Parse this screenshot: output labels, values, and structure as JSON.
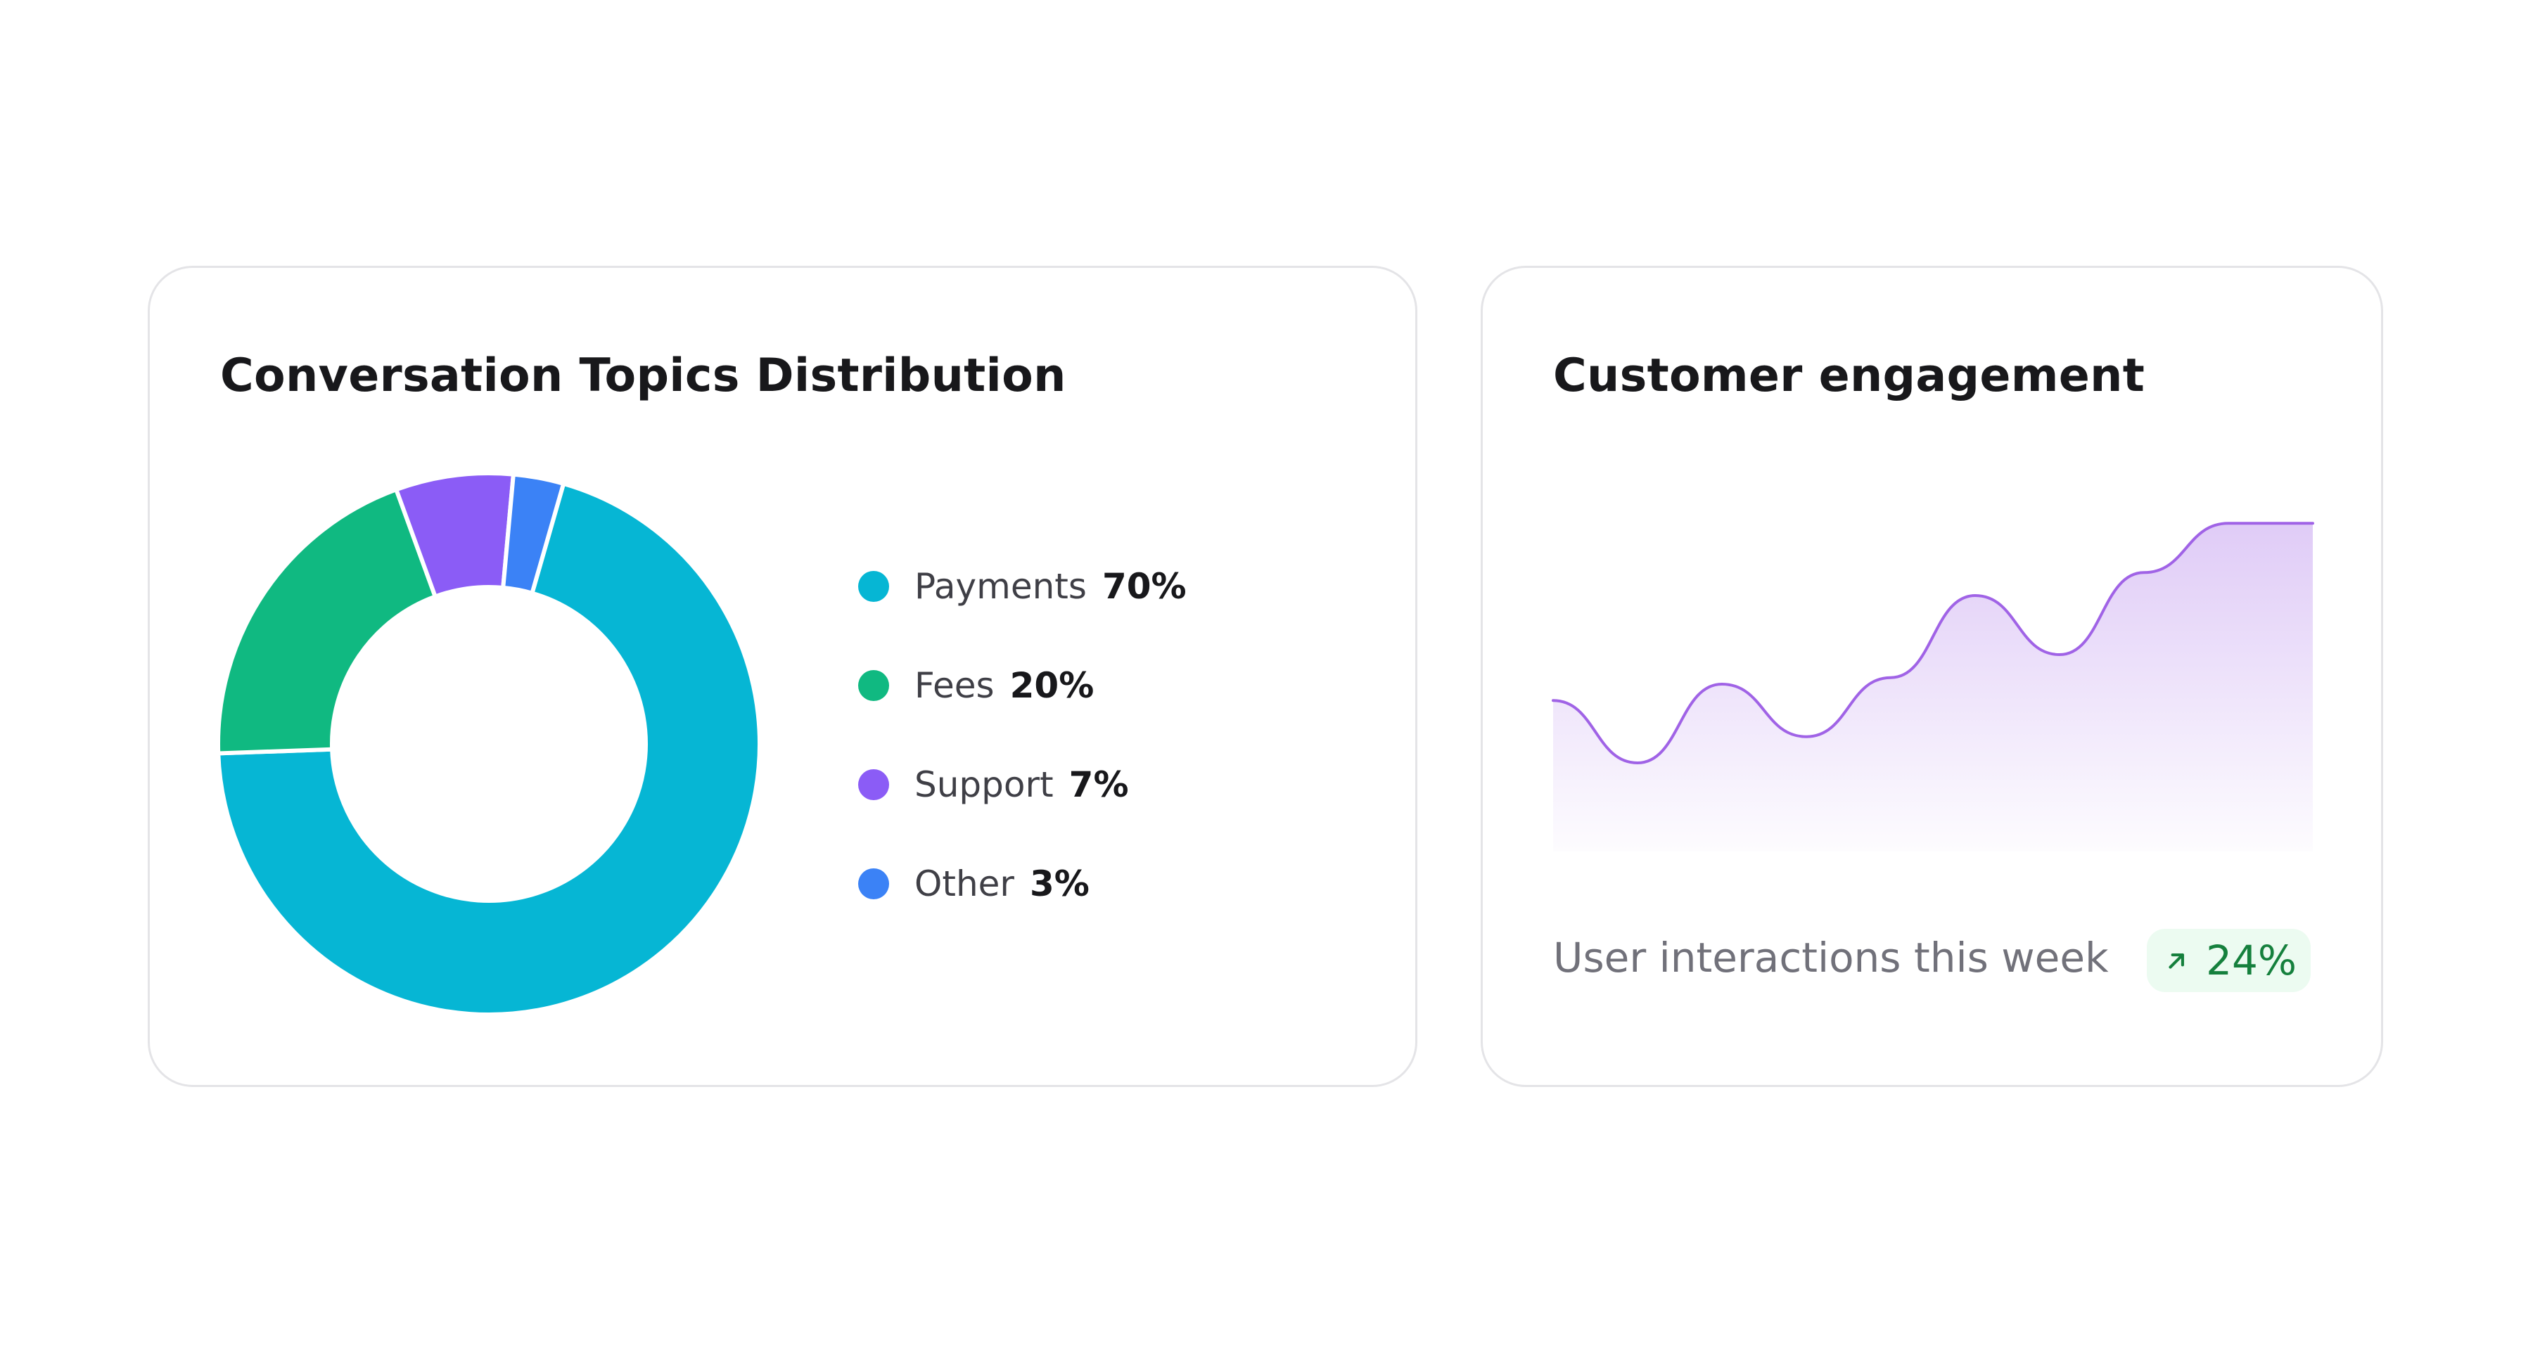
{
  "topics_card": {
    "title": "Conversation Topics Distribution"
  },
  "engagement_card": {
    "title": "Customer engagement",
    "footer_label": "User interactions this week",
    "trend_icon": "arrow-up-right-icon",
    "trend_value": "24%",
    "trend_color": "#15803d",
    "badge_color": "#ecfbf1"
  },
  "chart_data": [
    {
      "type": "pie",
      "categories": [
        "Payments",
        "Fees",
        "Support",
        "Other"
      ],
      "values": [
        70,
        20,
        7,
        3
      ],
      "labels": [
        "70%",
        "20%",
        "7%",
        "3%"
      ],
      "colors": [
        "#06b6d4",
        "#10b981",
        "#8b5cf6",
        "#3b82f6"
      ],
      "title": "Conversation Topics Distribution",
      "legend": "right"
    },
    {
      "type": "area",
      "title": "Customer engagement",
      "x": [
        0,
        1,
        2,
        3,
        4,
        5,
        6,
        7,
        8,
        9
      ],
      "values": [
        46,
        27,
        51,
        35,
        53,
        78,
        60,
        85,
        100,
        100
      ],
      "ylim": [
        0,
        120
      ],
      "color": "#a063e6",
      "grid": false,
      "legend": "none"
    }
  ]
}
